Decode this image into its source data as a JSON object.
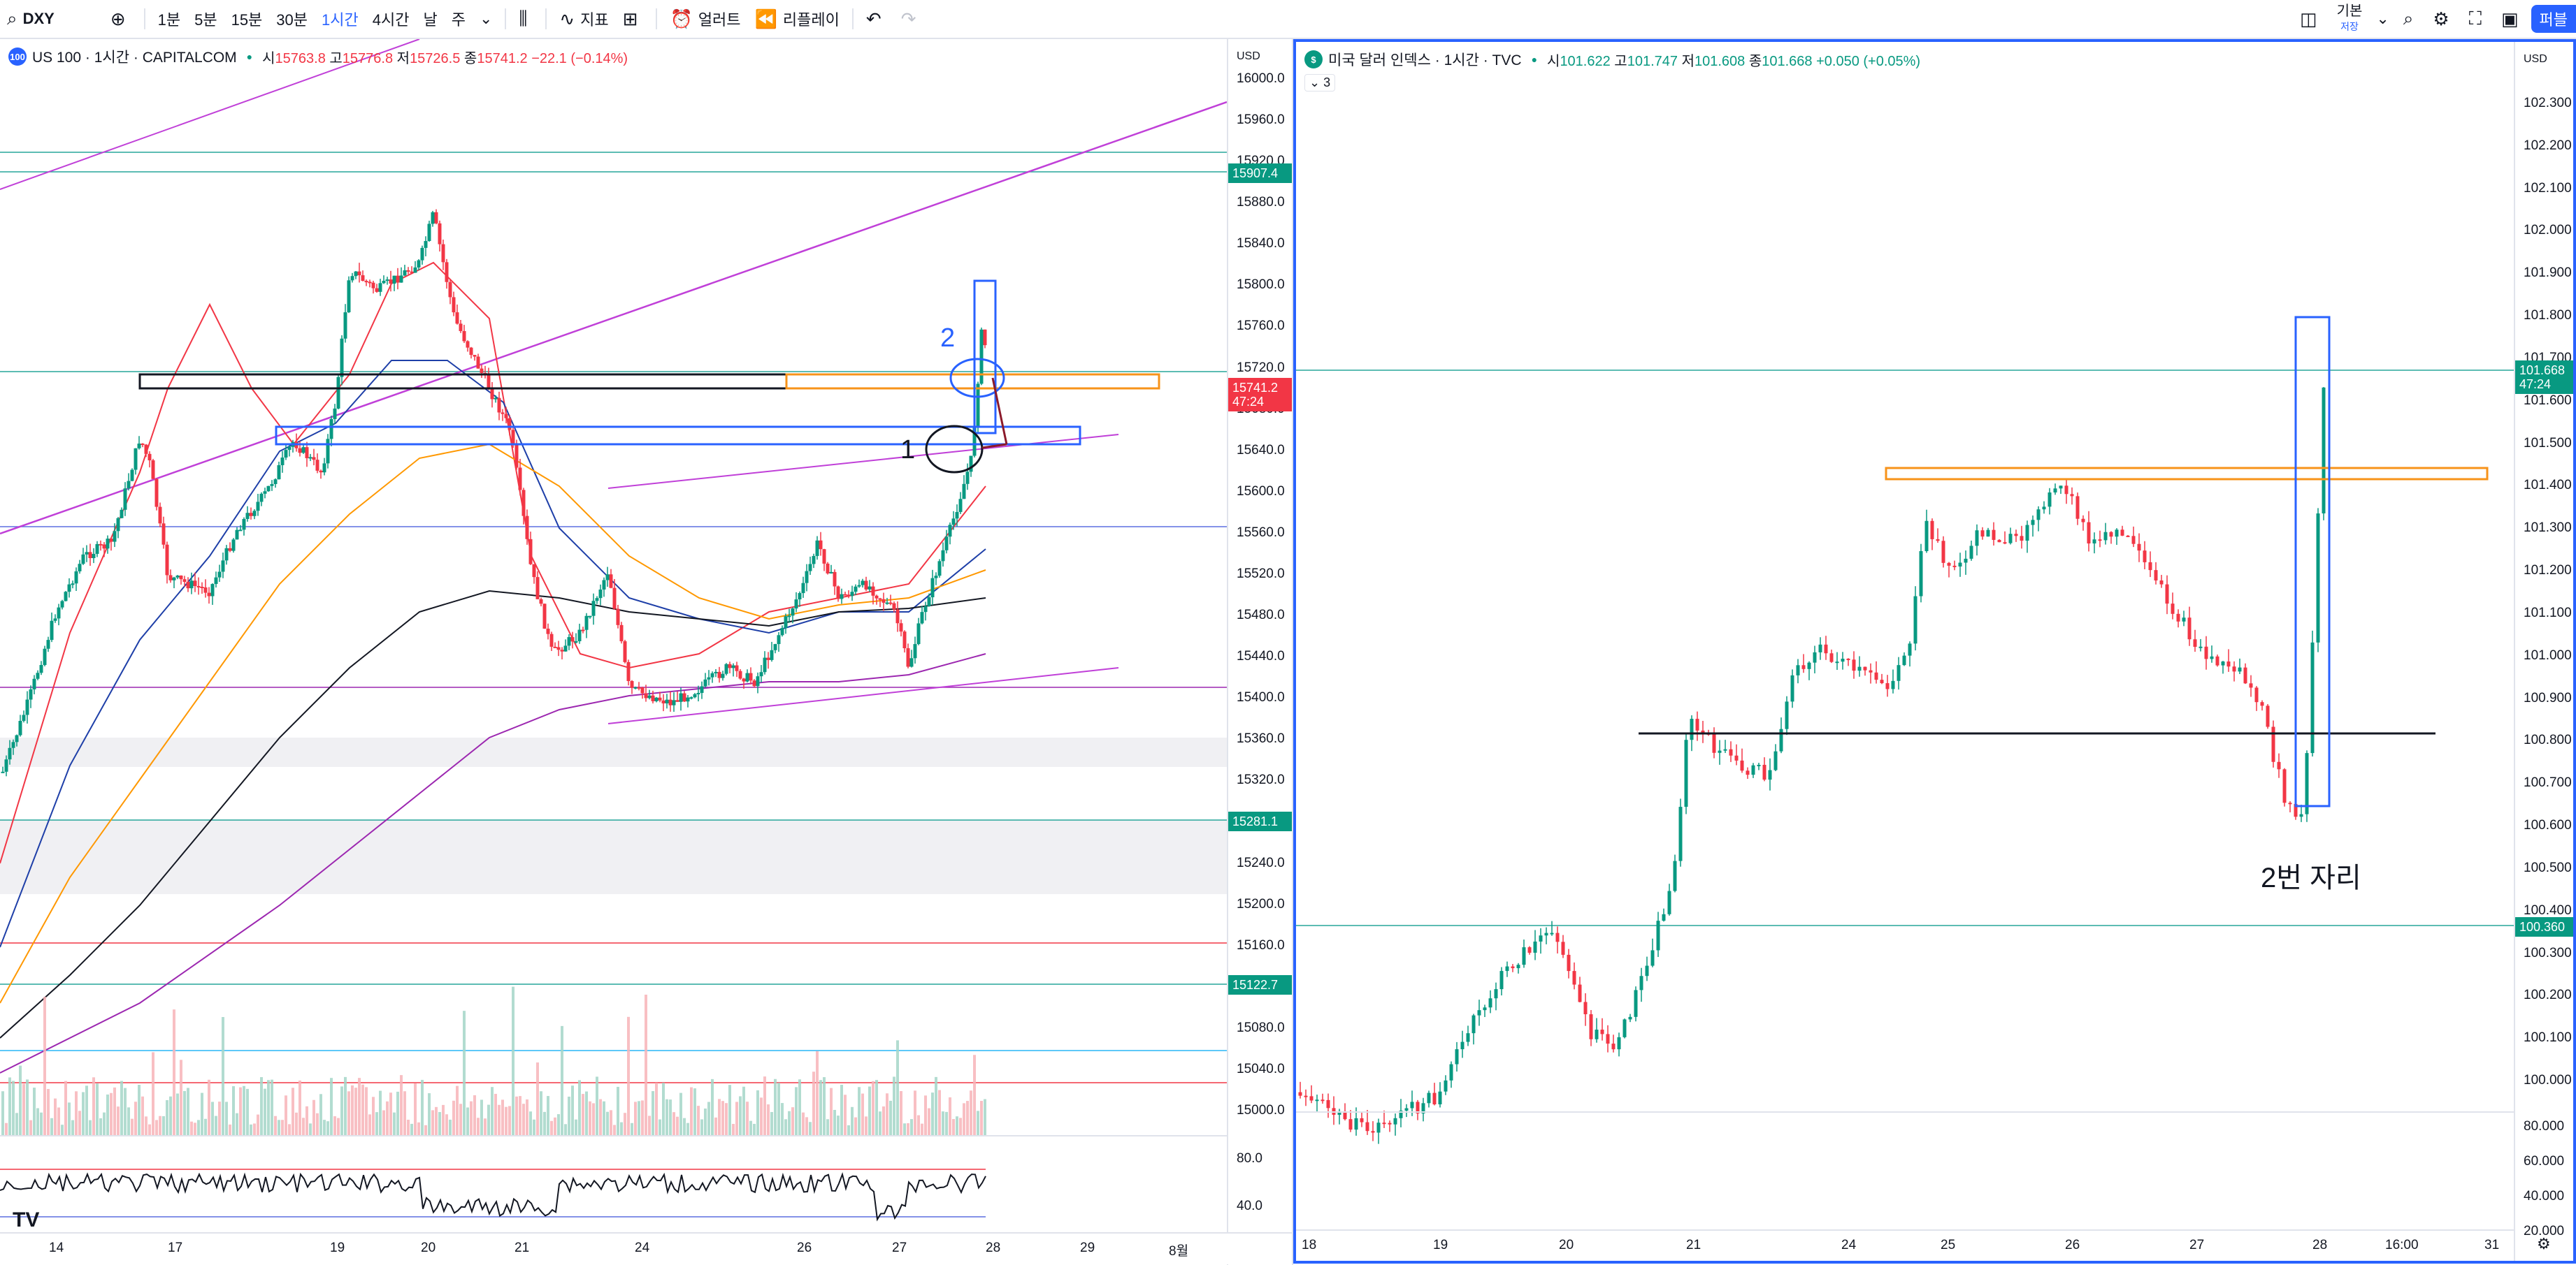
{
  "toolbar": {
    "symbol": "DXY",
    "intervals": [
      "1분",
      "5분",
      "15분",
      "30분",
      "1시간",
      "4시간",
      "날",
      "주"
    ],
    "active_interval": "1시간",
    "indicators_label": "지표",
    "alert_label": "얼러트",
    "replay_label": "리플레이",
    "layout_label": "기본",
    "layout_sub": "저장",
    "publish_label": "퍼블"
  },
  "left_chart": {
    "badge": "100",
    "title": "US 100 · 1시간 · CAPITALCOM",
    "ohlc": {
      "o_label": "시",
      "o": "15763.8",
      "h_label": "고",
      "h": "15776.8",
      "l_label": "저",
      "l": "15726.5",
      "c_label": "종",
      "c": "15741.2",
      "chg": "−22.1 (−0.14%)"
    },
    "currency": "USD",
    "y_ticks": [
      "16000.0",
      "15960.0",
      "15920.0",
      "15880.0",
      "15840.0",
      "15800.0",
      "15760.0",
      "15720.0",
      "15680.0",
      "15640.0",
      "15600.0",
      "15560.0",
      "15520.0",
      "15480.0",
      "15440.0",
      "15400.0",
      "15360.0",
      "15320.0",
      "15280.0",
      "15240.0",
      "15200.0",
      "15160.0",
      "15120.0",
      "15080.0",
      "15040.0",
      "15000.0"
    ],
    "price_labels": [
      {
        "value": "15907.4",
        "color": "#089981"
      },
      {
        "value": "15741.2",
        "sub": "47:24",
        "color": "#f23645"
      },
      {
        "value": "15281.1",
        "color": "#089981"
      },
      {
        "value": "15122.7",
        "color": "#089981"
      }
    ],
    "osc_ticks": [
      "80.0",
      "40.0"
    ],
    "x_ticks": [
      "14",
      "17",
      "19",
      "20",
      "21",
      "24",
      "26",
      "27",
      "28",
      "29",
      "8월"
    ],
    "annotations": {
      "label_1": "1",
      "label_2": "2"
    }
  },
  "right_chart": {
    "badge": "$",
    "title": "미국 달러 인덱스 · 1시간 · TVC",
    "ohlc": {
      "o_label": "시",
      "o": "101.622",
      "h_label": "고",
      "h": "101.747",
      "l_label": "저",
      "l": "101.608",
      "c_label": "종",
      "c": "101.668",
      "chg": "+0.050 (+0.05%)"
    },
    "indicator_count": "3",
    "currency": "USD",
    "y_ticks": [
      "102.300",
      "102.200",
      "102.100",
      "102.000",
      "101.900",
      "101.800",
      "101.700",
      "101.600",
      "101.500",
      "101.400",
      "101.300",
      "101.200",
      "101.100",
      "101.000",
      "100.900",
      "100.800",
      "100.700",
      "100.600",
      "100.500",
      "100.400",
      "100.300",
      "100.200",
      "100.100",
      "100.000"
    ],
    "price_labels": [
      {
        "value": "101.668",
        "sub": "47:24",
        "color": "#089981"
      },
      {
        "value": "100.360",
        "color": "#089981"
      }
    ],
    "osc_ticks": [
      "80.000",
      "60.000",
      "40.000",
      "20.000"
    ],
    "x_ticks": [
      "18",
      "19",
      "20",
      "21",
      "24",
      "25",
      "26",
      "27",
      "28",
      "16:00",
      "31"
    ],
    "annotation_text": "2번 자리"
  }
}
